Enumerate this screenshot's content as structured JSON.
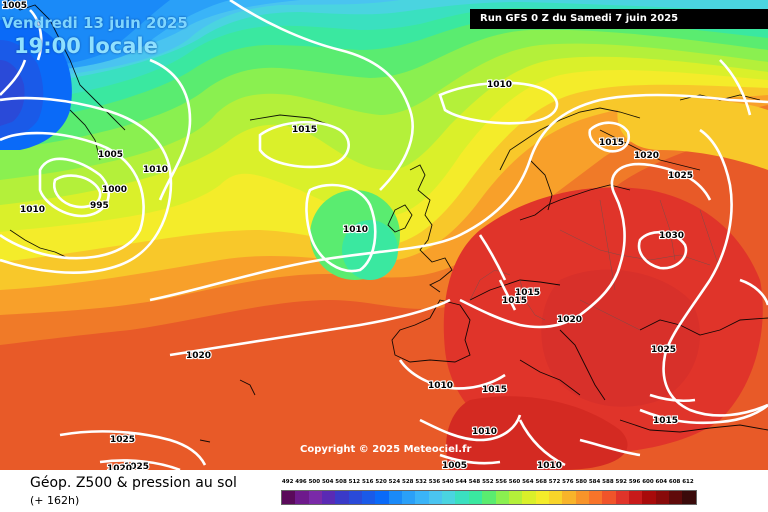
{
  "header": {
    "date": "Vendredi 13 juin 2025",
    "time": "19:00 locale",
    "run": "Run GFS 0 Z du Samedi 7 juin 2025"
  },
  "copyright": "Copyright © 2025 Meteociel.fr",
  "legend": {
    "title": "Géop. Z500 & pression au sol",
    "subtitle": "(+ 162h)",
    "scale_values": [
      "492",
      "496",
      "500",
      "504",
      "508",
      "512",
      "516",
      "520",
      "524",
      "528",
      "532",
      "536",
      "540",
      "544",
      "548",
      "552",
      "556",
      "560",
      "564",
      "568",
      "572",
      "576",
      "580",
      "584",
      "588",
      "592",
      "596",
      "600",
      "604",
      "608",
      "612"
    ],
    "scale_colors": [
      "#5a0a5a",
      "#6e1a8c",
      "#7a2aa8",
      "#5a2ab4",
      "#3a3ac8",
      "#2a4ad8",
      "#1a5ae8",
      "#0a6af8",
      "#1a8af8",
      "#2aa0f8",
      "#3ab4f8",
      "#4ac4f0",
      "#4ad4e0",
      "#3ae0c0",
      "#3ae8a0",
      "#5aec70",
      "#8af050",
      "#b4f03a",
      "#daf02a",
      "#f4ec2a",
      "#f8d42a",
      "#f8b42a",
      "#f8942a",
      "#f8742a",
      "#f0542a",
      "#e0342a",
      "#c81a1a",
      "#a80a0a",
      "#880a0a",
      "#600a0a",
      "#3a0a0a"
    ]
  },
  "isobars": [
    {
      "label": "1005",
      "value": 1005
    },
    {
      "label": "1005",
      "value": 1005
    },
    {
      "label": "1000",
      "value": 1000
    },
    {
      "label": "995",
      "value": 995
    },
    {
      "label": "1010",
      "value": 1010
    },
    {
      "label": "1010",
      "value": 1010
    },
    {
      "label": "1010",
      "value": 1010
    },
    {
      "label": "1015",
      "value": 1015
    },
    {
      "label": "1010",
      "value": 1010
    },
    {
      "label": "1015",
      "value": 1015
    },
    {
      "label": "1020",
      "value": 1020
    },
    {
      "label": "1025",
      "value": 1025
    },
    {
      "label": "1030",
      "value": 1030
    },
    {
      "label": "1015",
      "value": 1015
    },
    {
      "label": "1015",
      "value": 1015
    },
    {
      "label": "1020",
      "value": 1020
    },
    {
      "label": "1025",
      "value": 1025
    },
    {
      "label": "1020",
      "value": 1020
    },
    {
      "label": "1010",
      "value": 1010
    },
    {
      "label": "1015",
      "value": 1015
    },
    {
      "label": "1015",
      "value": 1015
    },
    {
      "label": "1010",
      "value": 1010
    },
    {
      "label": "1005",
      "value": 1005
    },
    {
      "label": "1010",
      "value": 1010
    },
    {
      "label": "1025",
      "value": 1025
    },
    {
      "label": "1025",
      "value": 1025
    },
    {
      "label": "1020",
      "value": 1020
    }
  ]
}
